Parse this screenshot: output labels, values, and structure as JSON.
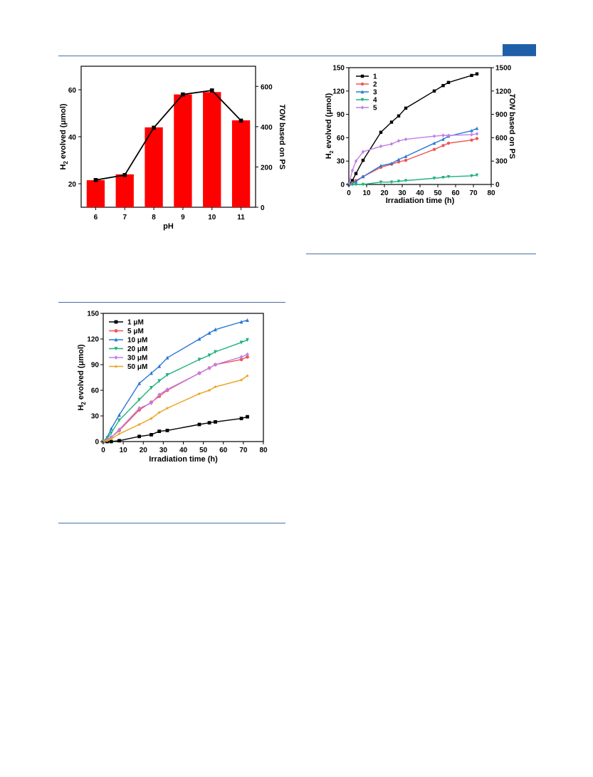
{
  "colors": {
    "rule": "#4a6fa5",
    "badge": "#1f5fa8"
  },
  "chart_data": [
    {
      "type": "bar",
      "categories": [
        "6",
        "7",
        "8",
        "9",
        "10",
        "11"
      ],
      "series": [
        {
          "values": [
            21.5,
            24,
            44,
            58,
            59,
            47
          ],
          "color": "#ff0000"
        },
        {
          "type": "line",
          "axis": "right",
          "values": [
            135,
            160,
            395,
            560,
            580,
            430
          ],
          "color": "#000000"
        }
      ],
      "xlabel": "pH",
      "ylabel_prefix": "H",
      "ylabel_sub": "2",
      "ylabel_suffix": " evolved (μmol)",
      "y2label_italic": "TON",
      "y2label_rest": " based on PS",
      "ylim": [
        10,
        70
      ],
      "y_ticks": [
        20,
        40,
        60
      ],
      "y2lim": [
        0,
        700
      ],
      "y2_ticks": [
        0,
        200,
        400,
        600
      ]
    },
    {
      "type": "line",
      "x": [
        0,
        2,
        4,
        8,
        18,
        24,
        28,
        32,
        48,
        53,
        56,
        69,
        72
      ],
      "series": [
        {
          "name": "1",
          "color": "#000000",
          "marker": "square",
          "values": [
            0,
            5,
            14,
            31,
            67,
            80,
            88,
            98,
            120,
            127,
            131,
            140,
            142
          ]
        },
        {
          "name": "2",
          "color": "#f05555",
          "marker": "circle",
          "values": [
            0,
            2,
            5,
            10,
            22,
            26,
            29,
            31,
            45,
            50,
            53,
            57,
            59
          ]
        },
        {
          "name": "3",
          "color": "#2a78d6",
          "marker": "triangle",
          "values": [
            0,
            1,
            4,
            10,
            24,
            27,
            32,
            36,
            53,
            58,
            62,
            69,
            72
          ]
        },
        {
          "name": "4",
          "color": "#1db37a",
          "marker": "invtri",
          "values": [
            0,
            0,
            0,
            0,
            3,
            3,
            4,
            5,
            8,
            9,
            10,
            11,
            12
          ]
        },
        {
          "name": "5",
          "color": "#c07ee6",
          "marker": "diamond",
          "values": [
            0,
            18,
            30,
            42,
            49,
            52,
            56,
            58,
            62,
            63,
            63,
            64,
            65
          ]
        }
      ],
      "xlabel": "Irradiation time (h)",
      "ylabel_prefix": "H",
      "ylabel_sub": "2",
      "ylabel_suffix": " evolved (μmol)",
      "y2label_italic": "TON",
      "y2label_rest": " based on PS",
      "xlim": [
        0,
        80
      ],
      "x_ticks": [
        0,
        10,
        20,
        30,
        40,
        50,
        60,
        70,
        80
      ],
      "ylim": [
        0,
        150
      ],
      "y_ticks": [
        0,
        30,
        60,
        90,
        120,
        150
      ],
      "y2lim": [
        0,
        1500
      ],
      "y2_ticks": [
        0,
        300,
        600,
        900,
        1200,
        1500
      ],
      "legend": "top-left"
    },
    {
      "type": "line",
      "x": [
        0,
        2,
        4,
        8,
        18,
        24,
        28,
        32,
        48,
        53,
        56,
        69,
        72
      ],
      "series": [
        {
          "name": "1 μM",
          "color": "#000000",
          "marker": "square",
          "values": [
            0,
            0,
            0,
            1,
            6,
            8,
            12,
            13,
            20,
            22,
            23,
            27,
            29
          ]
        },
        {
          "name": "5 μM",
          "color": "#f05555",
          "marker": "circle",
          "values": [
            0,
            2,
            5,
            13,
            37,
            46,
            53,
            60,
            80,
            86,
            90,
            96,
            99
          ]
        },
        {
          "name": "10 μM",
          "color": "#2a78d6",
          "marker": "triangle",
          "values": [
            0,
            5,
            15,
            31,
            68,
            80,
            88,
            98,
            120,
            127,
            131,
            140,
            142
          ]
        },
        {
          "name": "20 μM",
          "color": "#1db37a",
          "marker": "invtri",
          "values": [
            0,
            4,
            10,
            25,
            49,
            63,
            71,
            78,
            96,
            101,
            105,
            116,
            119
          ]
        },
        {
          "name": "30 μM",
          "color": "#c07ee6",
          "marker": "diamond",
          "values": [
            0,
            2,
            5,
            14,
            39,
            45,
            55,
            61,
            80,
            86,
            90,
            99,
            102
          ]
        },
        {
          "name": "50 μM",
          "color": "#e8a31a",
          "marker": "star",
          "values": [
            0,
            1,
            3,
            9,
            20,
            27,
            34,
            39,
            56,
            60,
            64,
            72,
            77
          ]
        }
      ],
      "xlabel": "Irradiation time (h)",
      "ylabel_prefix": "H",
      "ylabel_sub": "2",
      "ylabel_suffix": " evolved (μmol)",
      "xlim": [
        0,
        80
      ],
      "x_ticks": [
        0,
        10,
        20,
        30,
        40,
        50,
        60,
        70,
        80
      ],
      "ylim": [
        0,
        150
      ],
      "y_ticks": [
        0,
        30,
        60,
        90,
        120,
        150
      ],
      "legend": "top-left"
    }
  ]
}
